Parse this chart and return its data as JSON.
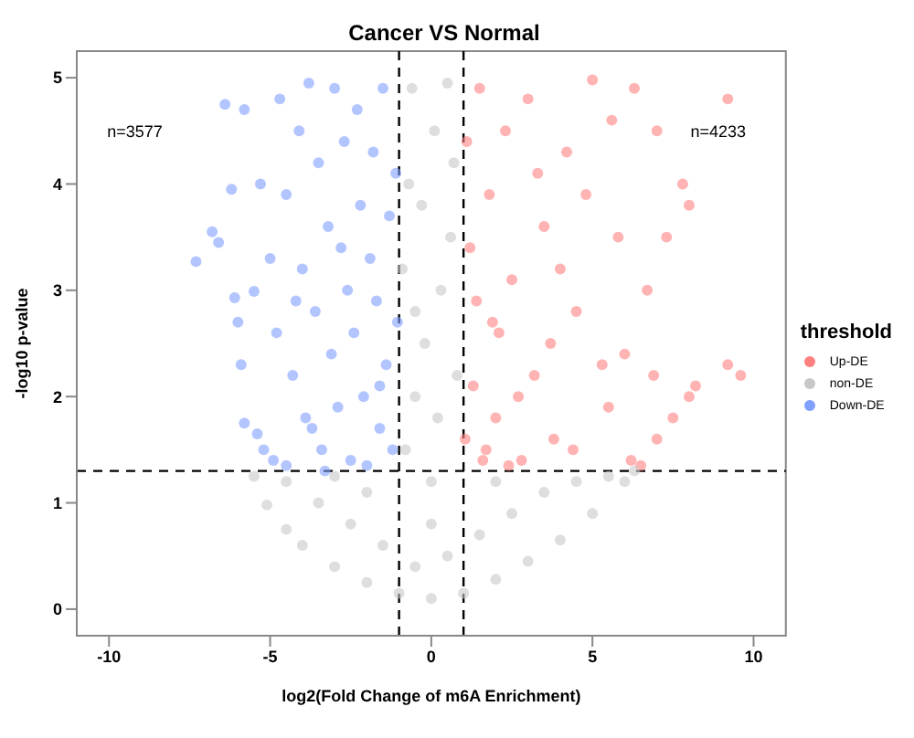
{
  "chart_data": {
    "type": "scatter",
    "title": "Cancer VS Normal",
    "xlabel": "log2(Fold Change of m6A Enrichment)",
    "ylabel": "-log10 p-value",
    "legend_title": "threshold",
    "legend": "right",
    "grid": false,
    "marker": "circle",
    "xlim": [
      -11,
      11
    ],
    "ylim": [
      -0.25,
      5.25
    ],
    "xticks": [
      -10,
      -5,
      0,
      5,
      10
    ],
    "yticks": [
      0,
      1,
      2,
      3,
      4,
      5
    ],
    "annotations": [
      "n=3577",
      "n=4233"
    ],
    "ref_lines": [
      {
        "axis": "x",
        "value": -1,
        "line_style": "dashed",
        "color": "#000000"
      },
      {
        "axis": "x",
        "value": 1,
        "line_style": "dashed",
        "color": "#000000"
      },
      {
        "axis": "y",
        "value": 1.3,
        "line_style": "dashed",
        "color": "#000000"
      }
    ],
    "series": [
      {
        "name": "Up-DE",
        "color": "#ff8080",
        "x": [
          6.5,
          7,
          7.5,
          8,
          8.2,
          9.2,
          9.6,
          9.2,
          7.8,
          7,
          6.3,
          5.8,
          6.7,
          6,
          5.5,
          5,
          4.5,
          4.2,
          3.8,
          3.5,
          3.2,
          3,
          2.8,
          2.5,
          2.3,
          2.1,
          2,
          1.8,
          1.6,
          1.5,
          1.4,
          1.3,
          1.2,
          1.1,
          1.05,
          6.2,
          5.3,
          4.8,
          4,
          3.7,
          2.7,
          1.9,
          7.3,
          8,
          5.6,
          3.3,
          4.4,
          2.4,
          6.9,
          1.7
        ],
        "values": [
          1.35,
          1.6,
          1.8,
          2,
          2.1,
          2.3,
          2.2,
          4.8,
          4,
          4.5,
          4.9,
          3.5,
          3,
          2.4,
          1.9,
          4.98,
          2.8,
          4.3,
          1.6,
          3.6,
          2.2,
          4.8,
          1.4,
          3.1,
          4.5,
          2.6,
          1.8,
          3.9,
          1.4,
          4.9,
          2.9,
          2.1,
          3.4,
          4.4,
          1.6,
          1.4,
          2.3,
          3.9,
          3.2,
          2.5,
          2,
          2.7,
          3.5,
          3.8,
          4.6,
          4.1,
          1.5,
          1.35,
          2.2,
          1.5
        ]
      },
      {
        "name": "non-DE",
        "color": "#c8c8c8",
        "x": [
          -5.5,
          -5.1,
          -4.5,
          -4,
          -3,
          -2,
          -1,
          0,
          1,
          2,
          3,
          4,
          5,
          6,
          6.3,
          -4.5,
          -3.5,
          -2.5,
          -1.5,
          -0.5,
          0.5,
          1.5,
          2.5,
          3.5,
          4.5,
          5.5,
          -3,
          -2,
          0,
          2,
          -0.8,
          -0.5,
          -0.2,
          0.3,
          0.6,
          -0.7,
          0.1,
          -0.6,
          0.5,
          0.8,
          -0.9,
          0.2,
          -0.3,
          0.7,
          0,
          -0.5
        ],
        "values": [
          1.25,
          0.98,
          0.75,
          0.6,
          0.4,
          0.25,
          0.15,
          0.1,
          0.15,
          0.28,
          0.45,
          0.65,
          0.9,
          1.2,
          1.3,
          1.2,
          1,
          0.8,
          0.6,
          0.4,
          0.5,
          0.7,
          0.9,
          1.1,
          1.2,
          1.25,
          1.25,
          1.1,
          0.8,
          1.2,
          1.5,
          2,
          2.5,
          3,
          3.5,
          4,
          4.5,
          4.9,
          4.95,
          2.2,
          3.2,
          1.8,
          3.8,
          4.2,
          1.2,
          2.8
        ]
      },
      {
        "name": "Down-DE",
        "color": "#809fff",
        "x": [
          -7.3,
          -6.6,
          -6.8,
          -6.1,
          -6,
          -5.9,
          -5.8,
          -5.5,
          -5.4,
          -5.2,
          -5,
          -4.9,
          -4.8,
          -4.7,
          -4.5,
          -4.5,
          -4.3,
          -4.1,
          -4,
          -3.9,
          -3.8,
          -3.6,
          -3.5,
          -3.4,
          -3.2,
          -3.1,
          -3,
          -2.9,
          -2.7,
          -2.6,
          -2.5,
          -2.4,
          -2.3,
          -2.2,
          -2.1,
          -2,
          -1.9,
          -1.8,
          -1.7,
          -1.6,
          -1.5,
          -1.4,
          -1.3,
          -1.2,
          -1.1,
          -1.05,
          -5.8,
          -6.4,
          -5.3,
          -6.2,
          -3.3,
          -2.8,
          -1.6,
          -4.2,
          -3.7
        ],
        "values": [
          3.27,
          3.45,
          3.55,
          2.93,
          2.7,
          2.3,
          1.75,
          2.99,
          1.65,
          1.5,
          3.3,
          1.4,
          2.6,
          4.8,
          3.9,
          1.35,
          2.2,
          4.5,
          3.2,
          1.8,
          4.95,
          2.8,
          4.2,
          1.5,
          3.6,
          2.4,
          4.9,
          1.9,
          4.4,
          3,
          1.4,
          2.6,
          4.7,
          3.8,
          2,
          1.35,
          3.3,
          4.3,
          2.9,
          1.7,
          4.9,
          2.3,
          3.7,
          1.5,
          4.1,
          2.7,
          4.7,
          4.75,
          4,
          3.95,
          1.3,
          3.4,
          2.1,
          2.9,
          1.7
        ]
      }
    ]
  }
}
